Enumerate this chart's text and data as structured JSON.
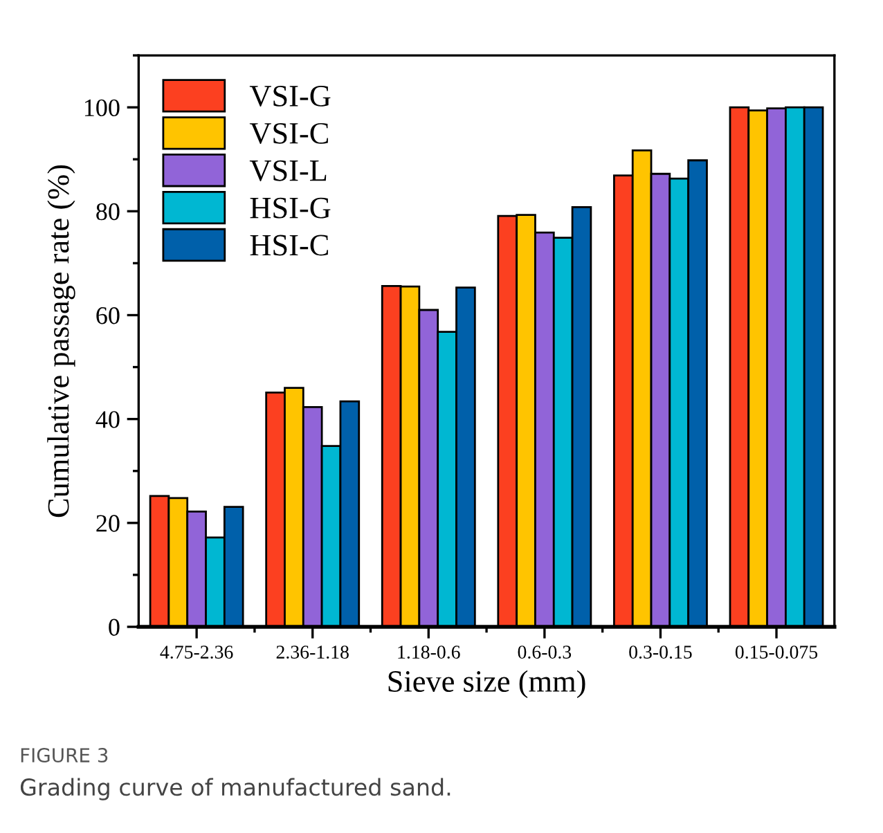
{
  "chart_data": {
    "type": "bar",
    "xlabel": "Sieve size (mm)",
    "ylabel": "Cumulative passage rate (%)",
    "categories": [
      "4.75-2.36",
      "2.36-1.18",
      "1.18-0.6",
      "0.6-0.3",
      "0.3-0.15",
      "0.15-0.075"
    ],
    "series": [
      {
        "name": "VSI-G",
        "color": "#fc4020",
        "values": [
          25.2,
          45.1,
          65.6,
          79.1,
          86.9,
          100
        ]
      },
      {
        "name": "VSI-C",
        "color": "#ffc400",
        "values": [
          24.8,
          46.0,
          65.5,
          79.3,
          91.7,
          99.4
        ]
      },
      {
        "name": "VSI-L",
        "color": "#9164d8",
        "values": [
          22.2,
          42.3,
          61.0,
          75.9,
          87.2,
          99.8
        ]
      },
      {
        "name": "HSI-G",
        "color": "#00b7d2",
        "values": [
          17.2,
          34.8,
          56.8,
          74.9,
          86.3,
          100
        ]
      },
      {
        "name": "HSI-C",
        "color": "#0060aa",
        "values": [
          23.1,
          43.4,
          65.3,
          80.8,
          89.8,
          100
        ]
      }
    ],
    "ylim": [
      0,
      110
    ],
    "yticks": [
      0,
      20,
      40,
      60,
      80,
      100
    ],
    "grid": false,
    "legend": "top left",
    "annotations": [
      "FIGURE 3",
      "Grading curve of manufactured sand."
    ]
  }
}
